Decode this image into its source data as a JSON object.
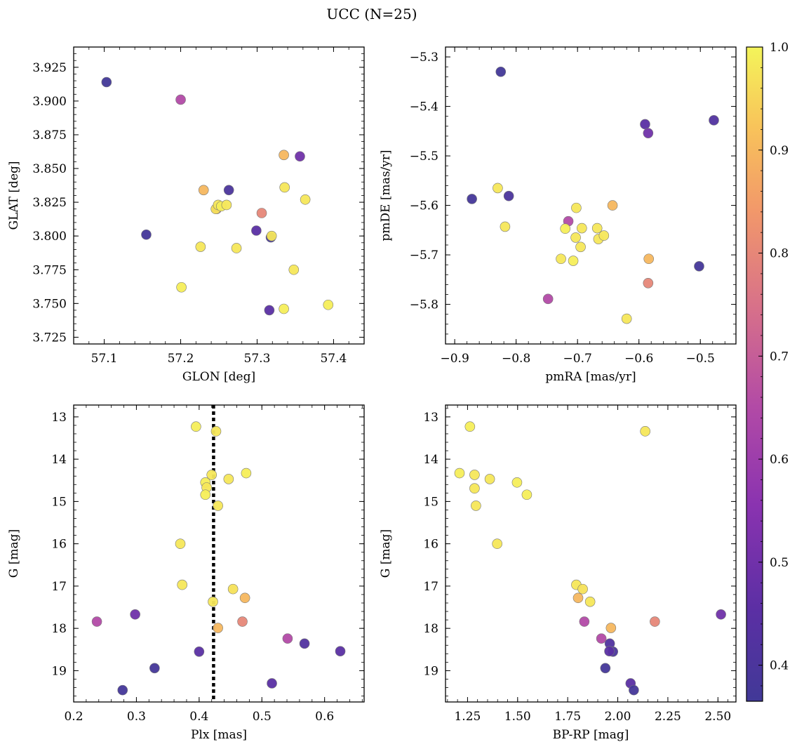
{
  "suptitle": "UCC (N=25)",
  "colorbar": {
    "range": [
      0.365,
      1.0
    ],
    "ticks": [
      0.4,
      0.5,
      0.6,
      0.7,
      0.8,
      0.9,
      1.0
    ],
    "tick_labels": [
      "0.4",
      "0.5",
      "0.6",
      "0.7",
      "0.8",
      "0.9",
      "1.0"
    ],
    "colormap": "plasma"
  },
  "chart_data": [
    {
      "type": "scatter",
      "xlabel": "GLON [deg]",
      "ylabel": "GLAT [deg]",
      "xlim": [
        57.06,
        57.44
      ],
      "ylim": [
        3.72,
        3.94
      ],
      "yinvert": false,
      "xticks": [
        57.1,
        57.2,
        57.3,
        57.4
      ],
      "xtick_labels": [
        "57.1",
        "57.2",
        "57.3",
        "57.4"
      ],
      "yticks": [
        3.725,
        3.75,
        3.775,
        3.8,
        3.825,
        3.85,
        3.875,
        3.9,
        3.925
      ],
      "ytick_labels": [
        "3.725",
        "3.750",
        "3.775",
        "3.800",
        "3.825",
        "3.850",
        "3.875",
        "3.900",
        "3.925"
      ],
      "points": [
        {
          "x": 57.103,
          "y": 3.914,
          "c": 0.37
        },
        {
          "x": 57.2,
          "y": 3.901,
          "c": 0.65
        },
        {
          "x": 57.155,
          "y": 3.801,
          "c": 0.38
        },
        {
          "x": 57.263,
          "y": 3.834,
          "c": 0.4
        },
        {
          "x": 57.299,
          "y": 3.804,
          "c": 0.45
        },
        {
          "x": 57.316,
          "y": 3.745,
          "c": 0.45
        },
        {
          "x": 57.356,
          "y": 3.859,
          "c": 0.5
        },
        {
          "x": 57.318,
          "y": 3.799,
          "c": 0.38
        },
        {
          "x": 57.306,
          "y": 3.817,
          "c": 0.8
        },
        {
          "x": 57.335,
          "y": 3.86,
          "c": 0.9
        },
        {
          "x": 57.23,
          "y": 3.834,
          "c": 0.9
        },
        {
          "x": 57.247,
          "y": 3.82,
          "c": 0.75
        },
        {
          "x": 57.226,
          "y": 3.792,
          "c": 0.98
        },
        {
          "x": 57.201,
          "y": 3.762,
          "c": 0.99
        },
        {
          "x": 57.273,
          "y": 3.791,
          "c": 0.98
        },
        {
          "x": 57.336,
          "y": 3.836,
          "c": 0.98
        },
        {
          "x": 57.363,
          "y": 3.827,
          "c": 0.98
        },
        {
          "x": 57.348,
          "y": 3.775,
          "c": 0.98
        },
        {
          "x": 57.335,
          "y": 3.746,
          "c": 0.99
        },
        {
          "x": 57.393,
          "y": 3.749,
          "c": 0.99
        },
        {
          "x": 57.319,
          "y": 3.8,
          "c": 0.98
        },
        {
          "x": 57.246,
          "y": 3.82,
          "c": 0.97
        },
        {
          "x": 57.249,
          "y": 3.823,
          "c": 0.98
        },
        {
          "x": 57.253,
          "y": 3.822,
          "c": 0.99
        },
        {
          "x": 57.26,
          "y": 3.823,
          "c": 0.98
        }
      ]
    },
    {
      "type": "scatter",
      "xlabel": "pmRA [mas/yr]",
      "ylabel": "pmDE [mas/yr]",
      "xlim": [
        -0.915,
        -0.442
      ],
      "ylim": [
        -5.88,
        -5.28
      ],
      "yinvert": false,
      "xticks": [
        -0.9,
        -0.8,
        -0.7,
        -0.6,
        -0.5
      ],
      "xtick_labels": [
        "−0.9",
        "−0.8",
        "−0.7",
        "−0.6",
        "−0.5"
      ],
      "yticks": [
        -5.8,
        -5.7,
        -5.6,
        -5.5,
        -5.4,
        -5.3
      ],
      "ytick_labels": [
        "−5.8",
        "−5.7",
        "−5.6",
        "−5.5",
        "−5.4",
        "−5.3"
      ],
      "points": [
        {
          "x": -0.825,
          "y": -5.33,
          "c": 0.37
        },
        {
          "x": -0.59,
          "y": -5.436,
          "c": 0.45
        },
        {
          "x": -0.585,
          "y": -5.454,
          "c": 0.5
        },
        {
          "x": -0.478,
          "y": -5.428,
          "c": 0.42
        },
        {
          "x": -0.872,
          "y": -5.587,
          "c": 0.38
        },
        {
          "x": -0.812,
          "y": -5.581,
          "c": 0.4
        },
        {
          "x": -0.502,
          "y": -5.723,
          "c": 0.38
        },
        {
          "x": -0.83,
          "y": -5.565,
          "c": 0.98
        },
        {
          "x": -0.818,
          "y": -5.643,
          "c": 0.98
        },
        {
          "x": -0.715,
          "y": -5.632,
          "c": 0.65
        },
        {
          "x": -0.748,
          "y": -5.789,
          "c": 0.65
        },
        {
          "x": -0.72,
          "y": -5.647,
          "c": 0.99
        },
        {
          "x": -0.702,
          "y": -5.605,
          "c": 0.98
        },
        {
          "x": -0.693,
          "y": -5.646,
          "c": 0.98
        },
        {
          "x": -0.703,
          "y": -5.665,
          "c": 0.98
        },
        {
          "x": -0.695,
          "y": -5.684,
          "c": 0.98
        },
        {
          "x": -0.727,
          "y": -5.708,
          "c": 0.98
        },
        {
          "x": -0.707,
          "y": -5.712,
          "c": 0.99
        },
        {
          "x": -0.668,
          "y": -5.646,
          "c": 0.98
        },
        {
          "x": -0.666,
          "y": -5.668,
          "c": 0.98
        },
        {
          "x": -0.657,
          "y": -5.661,
          "c": 0.98
        },
        {
          "x": -0.643,
          "y": -5.6,
          "c": 0.9
        },
        {
          "x": -0.584,
          "y": -5.708,
          "c": 0.9
        },
        {
          "x": -0.585,
          "y": -5.757,
          "c": 0.8
        },
        {
          "x": -0.62,
          "y": -5.829,
          "c": 0.98
        }
      ]
    },
    {
      "type": "scatter",
      "xlabel": "Plx [mas]",
      "ylabel": "G [mag]",
      "xlim": [
        0.2,
        0.663
      ],
      "ylim": [
        12.72,
        19.74
      ],
      "yinvert": true,
      "vline": 0.423,
      "xticks": [
        0.2,
        0.3,
        0.4,
        0.5,
        0.6
      ],
      "xtick_labels": [
        "0.2",
        "0.3",
        "0.4",
        "0.5",
        "0.6"
      ],
      "yticks": [
        13,
        14,
        15,
        16,
        17,
        18,
        19
      ],
      "ytick_labels": [
        "13",
        "14",
        "15",
        "16",
        "17",
        "18",
        "19"
      ],
      "points": [
        {
          "x": 0.395,
          "y": 13.23,
          "c": 0.99
        },
        {
          "x": 0.427,
          "y": 13.34,
          "c": 0.98
        },
        {
          "x": 0.475,
          "y": 14.33,
          "c": 0.99
        },
        {
          "x": 0.42,
          "y": 14.37,
          "c": 0.98
        },
        {
          "x": 0.447,
          "y": 14.47,
          "c": 0.98
        },
        {
          "x": 0.41,
          "y": 14.55,
          "c": 0.99
        },
        {
          "x": 0.412,
          "y": 14.67,
          "c": 0.98
        },
        {
          "x": 0.41,
          "y": 14.84,
          "c": 0.99
        },
        {
          "x": 0.43,
          "y": 15.1,
          "c": 0.98
        },
        {
          "x": 0.37,
          "y": 16.0,
          "c": 0.98
        },
        {
          "x": 0.373,
          "y": 16.97,
          "c": 0.98
        },
        {
          "x": 0.454,
          "y": 17.07,
          "c": 0.97
        },
        {
          "x": 0.473,
          "y": 17.28,
          "c": 0.9
        },
        {
          "x": 0.422,
          "y": 17.37,
          "c": 0.98
        },
        {
          "x": 0.298,
          "y": 17.67,
          "c": 0.5
        },
        {
          "x": 0.237,
          "y": 17.84,
          "c": 0.65
        },
        {
          "x": 0.469,
          "y": 17.84,
          "c": 0.8
        },
        {
          "x": 0.43,
          "y": 17.99,
          "c": 0.9
        },
        {
          "x": 0.541,
          "y": 18.24,
          "c": 0.65
        },
        {
          "x": 0.568,
          "y": 18.36,
          "c": 0.42
        },
        {
          "x": 0.4,
          "y": 18.55,
          "c": 0.45
        },
        {
          "x": 0.625,
          "y": 18.54,
          "c": 0.45
        },
        {
          "x": 0.329,
          "y": 18.94,
          "c": 0.38
        },
        {
          "x": 0.516,
          "y": 19.3,
          "c": 0.45
        },
        {
          "x": 0.278,
          "y": 19.46,
          "c": 0.38
        }
      ]
    },
    {
      "type": "scatter",
      "xlabel": "BP-RP [mag]",
      "ylabel": "G [mag]",
      "xlim": [
        1.14,
        2.59
      ],
      "ylim": [
        12.72,
        19.74
      ],
      "yinvert": true,
      "xticks": [
        1.25,
        1.5,
        1.75,
        2.0,
        2.25,
        2.5
      ],
      "xtick_labels": [
        "1.25",
        "1.50",
        "1.75",
        "2.00",
        "2.25",
        "2.50"
      ],
      "yticks": [
        13,
        14,
        15,
        16,
        17,
        18,
        19
      ],
      "ytick_labels": [
        "13",
        "14",
        "15",
        "16",
        "17",
        "18",
        "19"
      ],
      "points": [
        {
          "x": 1.262,
          "y": 13.23,
          "c": 0.99
        },
        {
          "x": 2.137,
          "y": 13.34,
          "c": 0.98
        },
        {
          "x": 1.21,
          "y": 14.33,
          "c": 0.99
        },
        {
          "x": 1.285,
          "y": 14.37,
          "c": 0.98
        },
        {
          "x": 1.361,
          "y": 14.47,
          "c": 0.98
        },
        {
          "x": 1.497,
          "y": 14.55,
          "c": 0.99
        },
        {
          "x": 1.285,
          "y": 14.69,
          "c": 0.98
        },
        {
          "x": 1.546,
          "y": 14.84,
          "c": 0.99
        },
        {
          "x": 1.292,
          "y": 15.1,
          "c": 0.98
        },
        {
          "x": 1.398,
          "y": 16.0,
          "c": 0.98
        },
        {
          "x": 1.793,
          "y": 16.97,
          "c": 0.98
        },
        {
          "x": 1.825,
          "y": 17.07,
          "c": 0.97
        },
        {
          "x": 1.802,
          "y": 17.28,
          "c": 0.9
        },
        {
          "x": 1.862,
          "y": 17.37,
          "c": 0.98
        },
        {
          "x": 2.515,
          "y": 17.67,
          "c": 0.5
        },
        {
          "x": 1.833,
          "y": 17.84,
          "c": 0.65
        },
        {
          "x": 2.185,
          "y": 17.84,
          "c": 0.8
        },
        {
          "x": 1.966,
          "y": 17.99,
          "c": 0.9
        },
        {
          "x": 1.918,
          "y": 18.24,
          "c": 0.65
        },
        {
          "x": 1.96,
          "y": 18.36,
          "c": 0.42
        },
        {
          "x": 1.976,
          "y": 18.55,
          "c": 0.4
        },
        {
          "x": 1.958,
          "y": 18.54,
          "c": 0.45
        },
        {
          "x": 1.938,
          "y": 18.94,
          "c": 0.38
        },
        {
          "x": 2.064,
          "y": 19.3,
          "c": 0.45
        },
        {
          "x": 2.08,
          "y": 19.46,
          "c": 0.38
        }
      ]
    }
  ]
}
